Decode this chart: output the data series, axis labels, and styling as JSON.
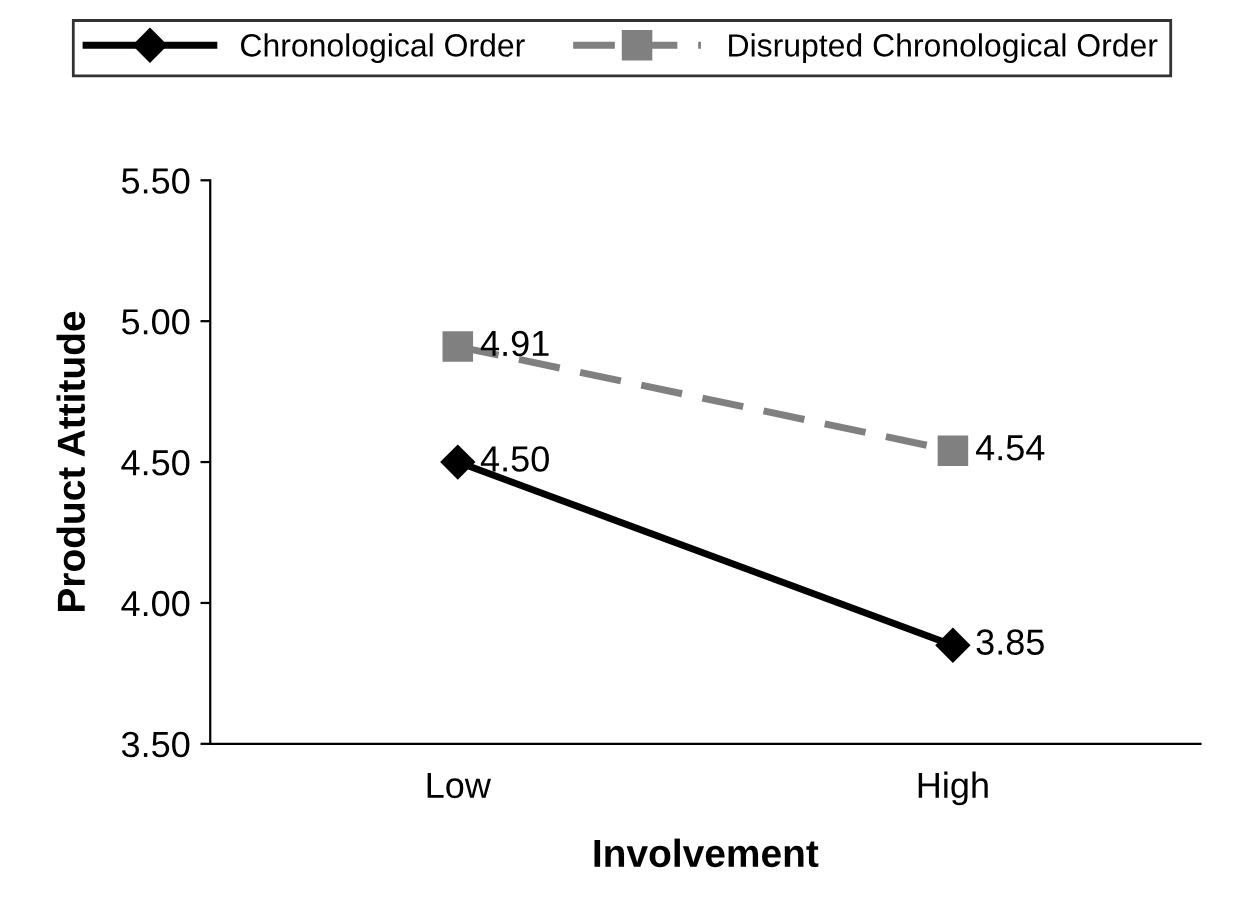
{
  "chart_data": {
    "type": "line",
    "categories": [
      "Low",
      "High"
    ],
    "xlabel": "Involvement",
    "ylabel": "Product Attitude",
    "ylim": [
      3.5,
      5.5
    ],
    "yticks": [
      {
        "value": 3.5,
        "label": "3.50"
      },
      {
        "value": 4.0,
        "label": "4.00"
      },
      {
        "value": 4.5,
        "label": "4.50"
      },
      {
        "value": 5.0,
        "label": "5.00"
      },
      {
        "value": 5.5,
        "label": "5.50"
      }
    ],
    "legend": "top",
    "grid": false,
    "series": [
      {
        "name": "Chronological Order",
        "color": "#000000",
        "values": [
          4.5,
          3.85
        ],
        "value_labels": [
          "4.50",
          "3.85"
        ],
        "marker": "diamond",
        "line_style": "solid"
      },
      {
        "name": "Disrupted Chronological Order",
        "color": "#808080",
        "values": [
          4.91,
          4.54
        ],
        "value_labels": [
          "4.91",
          "4.54"
        ],
        "marker": "square",
        "line_style": "dashed"
      }
    ]
  }
}
